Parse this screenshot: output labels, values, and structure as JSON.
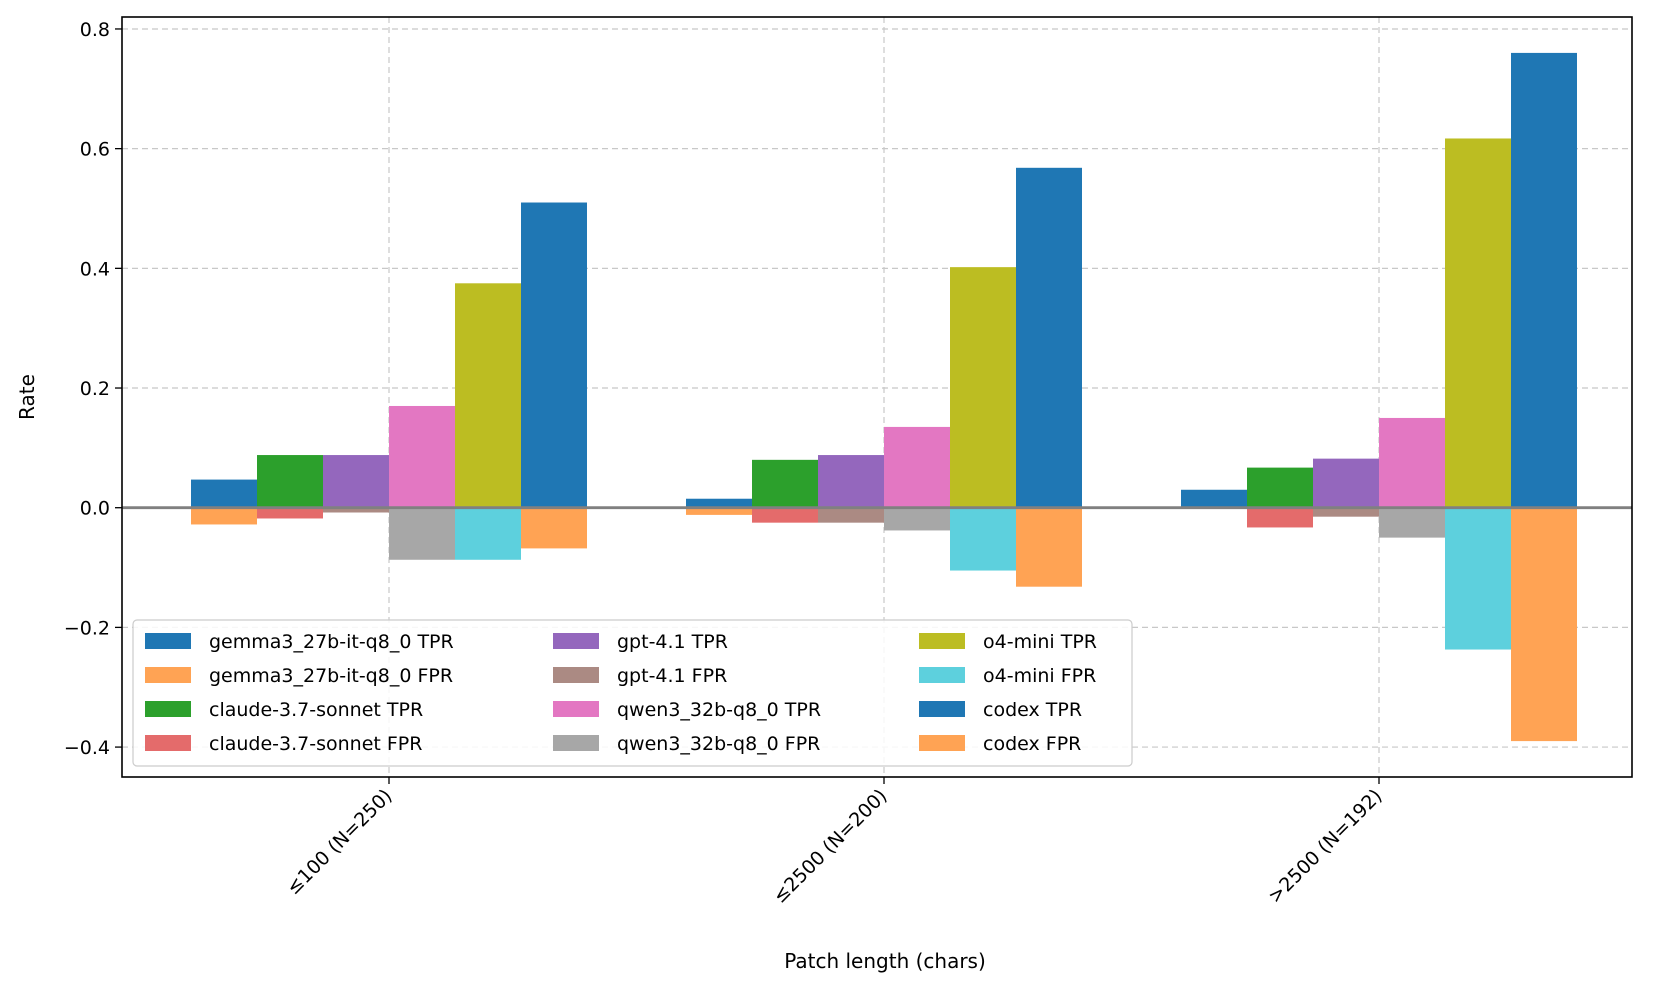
{
  "chart_data": {
    "type": "bar",
    "title": "",
    "xlabel": "Patch length (chars)",
    "ylabel": "Rate",
    "ylim": [
      -0.45,
      0.82
    ],
    "yticks": [
      -0.4,
      -0.2,
      0.0,
      0.2,
      0.4,
      0.6,
      0.8
    ],
    "ytick_labels": [
      "−0.4",
      "−0.2",
      "0.0",
      "0.2",
      "0.4",
      "0.6",
      "0.8"
    ],
    "grid": true,
    "legend_position": "lower-left",
    "categories": [
      "≤100 (N=250)",
      "≤2500 (N=200)",
      ">2500 (N=192)"
    ],
    "models": [
      {
        "name": "gemma3_27b-it-q8_0",
        "tpr_color": "#1f77b4",
        "fpr_color": "#ffa354",
        "tpr": [
          0.047,
          0.015,
          0.03
        ],
        "fpr": [
          0.028,
          0.012,
          0.0
        ]
      },
      {
        "name": "claude-3.7-sonnet",
        "tpr_color": "#2ca02c",
        "fpr_color": "#e46b6b",
        "tpr": [
          0.088,
          0.08,
          0.067
        ],
        "fpr": [
          0.018,
          0.025,
          0.033
        ]
      },
      {
        "name": "gpt-4.1",
        "tpr_color": "#9467bd",
        "fpr_color": "#ab8a83",
        "tpr": [
          0.088,
          0.088,
          0.082
        ],
        "fpr": [
          0.008,
          0.025,
          0.015
        ]
      },
      {
        "name": "qwen3_32b-q8_0",
        "tpr_color": "#e377c2",
        "fpr_color": "#a7a7a7",
        "tpr": [
          0.17,
          0.135,
          0.15
        ],
        "fpr": [
          0.087,
          0.038,
          0.05
        ]
      },
      {
        "name": "o4-mini",
        "tpr_color": "#bcbd22",
        "fpr_color": "#5dd0dd",
        "tpr": [
          0.375,
          0.402,
          0.617
        ],
        "fpr": [
          0.087,
          0.105,
          0.237
        ]
      },
      {
        "name": "codex",
        "tpr_color": "#1f77b4",
        "fpr_color": "#ffa354",
        "tpr": [
          0.51,
          0.568,
          0.76
        ],
        "fpr": [
          0.068,
          0.132,
          0.39
        ]
      }
    ],
    "legend": [
      {
        "label": "gemma3_27b-it-q8_0 TPR",
        "color": "#1f77b4"
      },
      {
        "label": "gemma3_27b-it-q8_0 FPR",
        "color": "#ffa354"
      },
      {
        "label": "claude-3.7-sonnet TPR",
        "color": "#2ca02c"
      },
      {
        "label": "claude-3.7-sonnet FPR",
        "color": "#e46b6b"
      },
      {
        "label": "gpt-4.1 TPR",
        "color": "#9467bd"
      },
      {
        "label": "gpt-4.1 FPR",
        "color": "#ab8a83"
      },
      {
        "label": "qwen3_32b-q8_0 TPR",
        "color": "#e377c2"
      },
      {
        "label": "qwen3_32b-q8_0 FPR",
        "color": "#a7a7a7"
      },
      {
        "label": "o4-mini TPR",
        "color": "#bcbd22"
      },
      {
        "label": "o4-mini FPR",
        "color": "#5dd0dd"
      },
      {
        "label": "codex TPR",
        "color": "#1f77b4"
      },
      {
        "label": "codex FPR",
        "color": "#ffa354"
      }
    ]
  }
}
